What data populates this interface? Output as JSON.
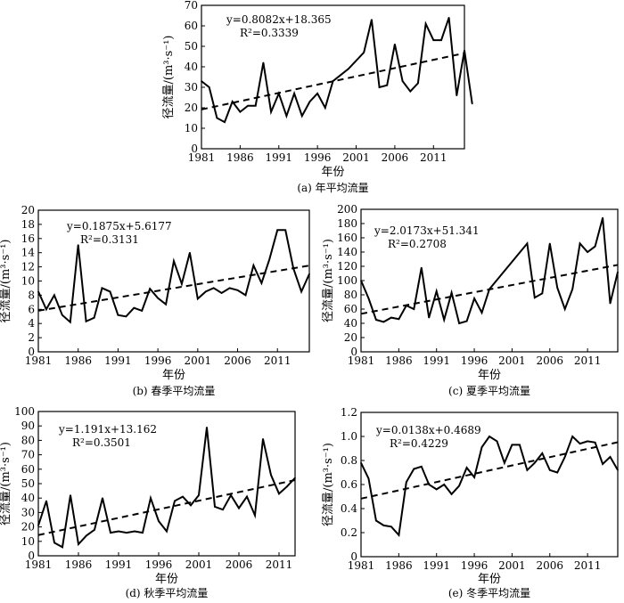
{
  "chart_data": [
    {
      "id": "a",
      "type": "line",
      "caption": "(a) 年平均流量",
      "xlabel": "年份",
      "ylabel": "径流量/(m³·s⁻¹)",
      "xlim": [
        1981,
        2015
      ],
      "ylim": [
        0,
        70
      ],
      "xticks": [
        "1981",
        "1986",
        "1991",
        "1996",
        "2001",
        "2006",
        "2011"
      ],
      "yticks": [
        "0",
        "10",
        "20",
        "30",
        "40",
        "50",
        "60",
        "70"
      ],
      "equation": "y=0.8082x+18.365",
      "r2": "R²=0.3339",
      "grid": false,
      "trend": {
        "slope": 0.8082,
        "intercept": 18.365,
        "style": "dashed"
      },
      "x": [
        1981,
        1982,
        1983,
        1984,
        1985,
        1986,
        1987,
        1988,
        1989,
        1990,
        1991,
        1992,
        1993,
        1994,
        1995,
        1996,
        1997,
        1998,
        1999,
        2000,
        2002,
        2003,
        2004,
        2005,
        2006,
        2007,
        2008,
        2009,
        2010,
        2011,
        2012,
        2013,
        2014,
        2015,
        2016
      ],
      "values": [
        33,
        30,
        15,
        13,
        23,
        18,
        21,
        21,
        42,
        18,
        27,
        16,
        27,
        16,
        23,
        27,
        20,
        33,
        36,
        39,
        47,
        63,
        30,
        31,
        51,
        33,
        28,
        32,
        61,
        53,
        53,
        64,
        26,
        48,
        22
      ]
    },
    {
      "id": "b",
      "type": "line",
      "caption": "(b) 春季平均流量",
      "xlabel": "年份",
      "ylabel": "径流量/(m³·s⁻¹)",
      "xlim": [
        1981,
        2015
      ],
      "ylim": [
        0,
        20
      ],
      "xticks": [
        "1981",
        "1986",
        "1991",
        "1996",
        "2001",
        "2006",
        "2011"
      ],
      "yticks": [
        "0",
        "2",
        "4",
        "6",
        "8",
        "10",
        "12",
        "14",
        "16",
        "18",
        "20"
      ],
      "equation": "y=0.1875x+5.6177",
      "r2": "R²=0.3131",
      "grid": false,
      "trend": {
        "slope": 0.1875,
        "intercept": 5.6177,
        "style": "dashed"
      },
      "x": [
        1981,
        1982,
        1983,
        1984,
        1985,
        1986,
        1987,
        1988,
        1989,
        1990,
        1991,
        1992,
        1993,
        1994,
        1995,
        1996,
        1997,
        1998,
        1999,
        2000,
        2001,
        2002,
        2003,
        2004,
        2005,
        2006,
        2007,
        2008,
        2009,
        2010,
        2011,
        2012,
        2013,
        2014,
        2015
      ],
      "values": [
        8.5,
        6,
        8,
        5.2,
        4.2,
        15.1,
        4.3,
        4.8,
        9,
        8.5,
        5.2,
        5,
        6.2,
        5.8,
        8.9,
        7.6,
        6.7,
        12.8,
        9.6,
        14,
        7.5,
        8.5,
        9,
        8.3,
        9,
        8.7,
        8,
        12.2,
        9.7,
        13.1,
        17.2,
        17.2,
        11.8,
        8.5,
        11
      ]
    },
    {
      "id": "c",
      "type": "line",
      "caption": "(c) 夏季平均流量",
      "xlabel": "年份",
      "ylabel": "径流量/(m³·s⁻¹)",
      "xlim": [
        1981,
        2015
      ],
      "ylim": [
        0,
        200
      ],
      "xticks": [
        "1981",
        "1986",
        "1991",
        "1996",
        "2001",
        "2006",
        "2011"
      ],
      "yticks": [
        "0",
        "20",
        "40",
        "60",
        "80",
        "100",
        "120",
        "140",
        "160",
        "180",
        "200"
      ],
      "equation": "y=2.0173x+51.341",
      "r2": "R²=0.2708",
      "grid": false,
      "trend": {
        "slope": 2.0173,
        "intercept": 51.341,
        "style": "dashed"
      },
      "x": [
        1981,
        1982,
        1983,
        1984,
        1985,
        1986,
        1987,
        1988,
        1989,
        1990,
        1991,
        1992,
        1993,
        1994,
        1995,
        1996,
        1997,
        1998,
        2003,
        2004,
        2005,
        2006,
        2007,
        2008,
        2009,
        2010,
        2011,
        2012,
        2013,
        2014,
        2015
      ],
      "values": [
        100,
        75,
        45,
        42,
        48,
        46,
        65,
        60,
        118,
        48,
        85,
        45,
        83,
        40,
        43,
        75,
        55,
        88,
        152,
        76,
        82,
        152,
        90,
        60,
        88,
        152,
        140,
        148,
        188,
        68,
        112
      ]
    },
    {
      "id": "d",
      "type": "line",
      "caption": "(d) 秋季平均流量",
      "xlabel": "年份",
      "ylabel": "径流量/(m³·s⁻¹)",
      "xlim": [
        1981,
        2013
      ],
      "ylim": [
        0,
        100
      ],
      "xticks": [
        "1981",
        "1986",
        "1991",
        "1996",
        "2001",
        "2006",
        "2011"
      ],
      "yticks": [
        "0",
        "10",
        "20",
        "30",
        "40",
        "50",
        "60",
        "70",
        "80",
        "90",
        "100"
      ],
      "equation": "y=1.191x+13.162",
      "r2": "R²=0.3501",
      "grid": false,
      "trend": {
        "slope": 1.191,
        "intercept": 13.162,
        "style": "dashed"
      },
      "x": [
        1981,
        1982,
        1983,
        1984,
        1985,
        1986,
        1987,
        1988,
        1989,
        1990,
        1991,
        1992,
        1993,
        1994,
        1995,
        1996,
        1997,
        1998,
        1999,
        2000,
        2001,
        2002,
        2003,
        2004,
        2005,
        2006,
        2007,
        2008,
        2009,
        2010,
        2011,
        2012,
        2013
      ],
      "values": [
        21,
        38,
        9,
        6,
        42,
        8,
        14,
        18,
        40,
        16,
        17,
        16,
        17,
        16,
        40,
        24,
        17,
        38,
        41,
        35,
        42,
        89,
        34,
        32,
        42,
        33,
        41,
        28,
        81,
        56,
        43,
        48,
        54
      ]
    },
    {
      "id": "e",
      "type": "line",
      "caption": "(e) 冬季平均流量",
      "xlabel": "年份",
      "ylabel": "径流量/(m³·s⁻¹)",
      "xlim": [
        1981,
        2015
      ],
      "ylim": [
        0,
        1.2
      ],
      "xticks": [
        "1981",
        "1986",
        "1991",
        "1996",
        "2001",
        "2006",
        "2011"
      ],
      "yticks": [
        "0",
        "0.2",
        "0.4",
        "0.6",
        "0.8",
        "1.0",
        "1.2"
      ],
      "equation": "y=0.0138x+0.4689",
      "r2": "R²=0.4229",
      "grid": false,
      "trend": {
        "slope": 0.0138,
        "intercept": 0.4689,
        "style": "dashed"
      },
      "x": [
        1981,
        1982,
        1983,
        1984,
        1985,
        1986,
        1987,
        1988,
        1989,
        1990,
        1991,
        1992,
        1993,
        1994,
        1995,
        1996,
        1997,
        1998,
        1999,
        2000,
        2001,
        2002,
        2003,
        2004,
        2005,
        2006,
        2007,
        2008,
        2009,
        2010,
        2011,
        2012,
        2013,
        2014,
        2015
      ],
      "values": [
        0.78,
        0.65,
        0.3,
        0.26,
        0.25,
        0.18,
        0.62,
        0.73,
        0.75,
        0.6,
        0.56,
        0.6,
        0.52,
        0.59,
        0.74,
        0.66,
        0.91,
        1.0,
        0.96,
        0.78,
        0.93,
        0.93,
        0.72,
        0.78,
        0.86,
        0.72,
        0.7,
        0.83,
        1.0,
        0.94,
        0.96,
        0.95,
        0.77,
        0.83,
        0.72
      ]
    }
  ]
}
